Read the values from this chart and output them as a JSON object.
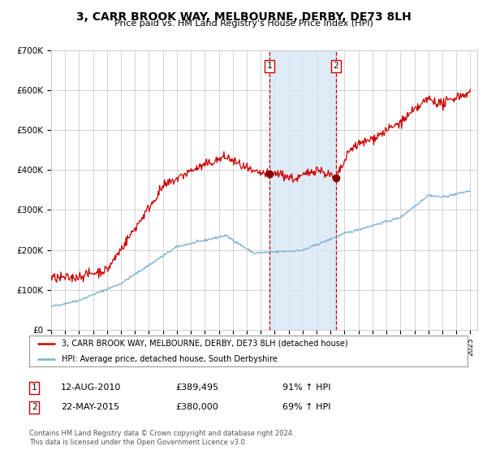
{
  "title": "3, CARR BROOK WAY, MELBOURNE, DERBY, DE73 8LH",
  "subtitle": "Price paid vs. HM Land Registry's House Price Index (HPI)",
  "ylim": [
    0,
    700000
  ],
  "yticks": [
    0,
    100000,
    200000,
    300000,
    400000,
    500000,
    600000,
    700000
  ],
  "ytick_labels": [
    "£0",
    "£100K",
    "£200K",
    "£300K",
    "£400K",
    "£500K",
    "£600K",
    "£700K"
  ],
  "xlim_start": 1995.0,
  "xlim_end": 2025.5,
  "hpi_color": "#7bafd4",
  "price_color": "#cc0000",
  "marker_color": "#880000",
  "transaction1_x": 2010.617,
  "transaction1_y": 389495,
  "transaction2_x": 2015.388,
  "transaction2_y": 380000,
  "legend_price_label": "3, CARR BROOK WAY, MELBOURNE, DERBY, DE73 8LH (detached house)",
  "legend_hpi_label": "HPI: Average price, detached house, South Derbyshire",
  "annotation1_date": "12-AUG-2010",
  "annotation1_price": "£389,495",
  "annotation1_hpi": "91% ↑ HPI",
  "annotation2_date": "22-MAY-2015",
  "annotation2_price": "£380,000",
  "annotation2_hpi": "69% ↑ HPI",
  "copyright_text": "Contains HM Land Registry data © Crown copyright and database right 2024.\nThis data is licensed under the Open Government Licence v3.0.",
  "background_color": "#ffffff",
  "grid_color": "#cccccc",
  "shade_color": "#dae8f5"
}
